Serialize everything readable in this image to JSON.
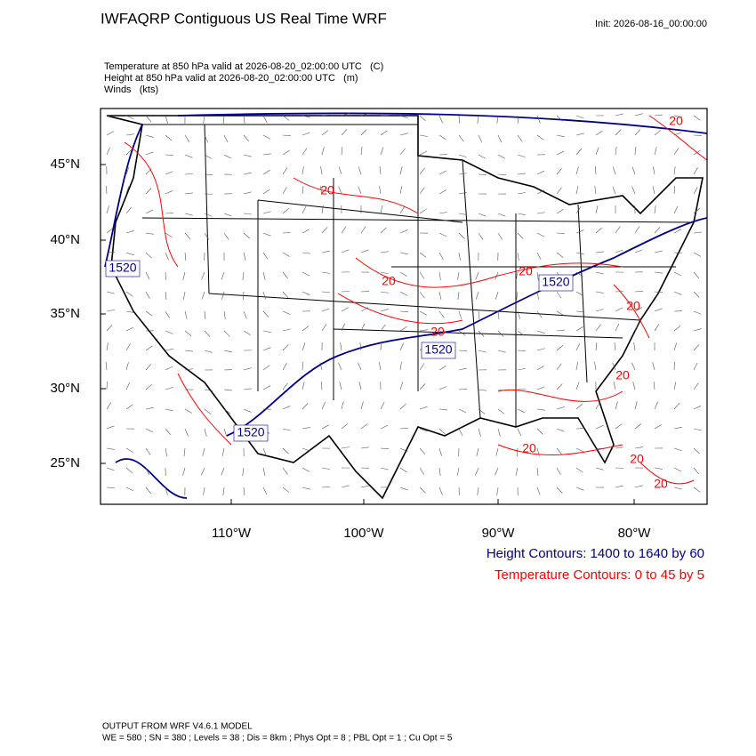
{
  "header": {
    "title": "IWFAQRP Contiguous US Real Time WRF",
    "init": "Init: 2026-08-16_00:00:00"
  },
  "fields": [
    "Temperature at 850 hPa valid at 2026-08-20_02:00:00 UTC   (C)",
    "Height at 850 hPa valid at 2026-08-20_02:00:00 UTC   (m)",
    "Winds   (kts)"
  ],
  "map": {
    "lat_labels": [
      "45°N",
      "40°N",
      "35°N",
      "30°N",
      "25°N"
    ],
    "lon_labels": [
      "110°W",
      "100°W",
      "90°W",
      "80°W"
    ],
    "height_labels": [
      "1520",
      "1520",
      "1520",
      "1520"
    ],
    "temp_labels": [
      "20",
      "20",
      "20",
      "20",
      "20",
      "20",
      "20",
      "20",
      "20",
      "20"
    ]
  },
  "legend": {
    "height": "Height Contours: 1400 to 1640 by 60",
    "temperature": "Temperature Contours: 0 to 45 by 5"
  },
  "footer": {
    "model": "OUTPUT FROM WRF V4.6.1 MODEL",
    "options": "WE = 580 ; SN = 380 ; Levels = 38 ; Dis = 8km ; Phys Opt = 8 ; PBL Opt = 1 ; Cu Opt = 5"
  }
}
